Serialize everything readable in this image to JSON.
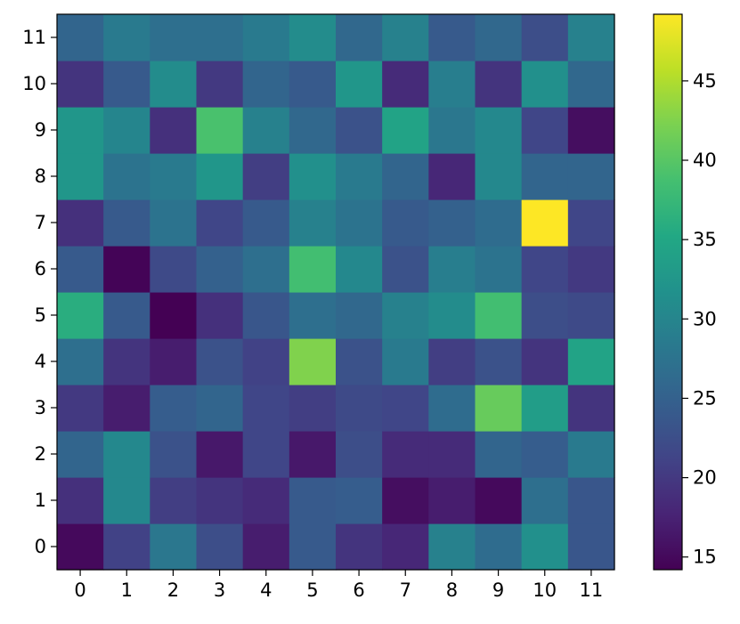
{
  "chart_data": {
    "type": "heatmap",
    "title": "",
    "xlabel": "",
    "ylabel": "",
    "x_tick_labels": [
      "0",
      "1",
      "2",
      "3",
      "4",
      "5",
      "6",
      "7",
      "8",
      "9",
      "10",
      "11"
    ],
    "y_tick_labels": [
      "0",
      "1",
      "2",
      "3",
      "4",
      "5",
      "6",
      "7",
      "8",
      "9",
      "10",
      "11"
    ],
    "y_origin": "bottom",
    "colormap": "viridis",
    "colorbar": {
      "vmin": 14.2,
      "vmax": 49.2,
      "ticks": [
        15,
        20,
        25,
        30,
        35,
        40,
        45
      ],
      "tick_labels": [
        "15",
        "20",
        "25",
        "30",
        "35",
        "40",
        "45"
      ]
    },
    "values": [
      [
        15.0,
        21.0,
        28.0,
        22.5,
        17.0,
        24.0,
        19.5,
        18.0,
        29.5,
        26.5,
        31.5,
        23.5
      ],
      [
        19.0,
        30.5,
        20.5,
        19.5,
        18.5,
        24.0,
        24.5,
        15.5,
        17.0,
        15.0,
        27.0,
        23.5
      ],
      [
        25.5,
        30.5,
        23.0,
        16.5,
        21.5,
        16.5,
        22.5,
        18.5,
        18.5,
        25.5,
        24.5,
        28.5
      ],
      [
        20.0,
        17.0,
        24.5,
        25.5,
        21.5,
        20.5,
        22.0,
        21.5,
        26.5,
        41.0,
        33.5,
        19.5
      ],
      [
        27.0,
        19.5,
        17.0,
        23.0,
        21.0,
        42.5,
        23.0,
        28.5,
        20.5,
        23.0,
        19.5,
        34.5
      ],
      [
        36.0,
        24.0,
        14.2,
        19.0,
        23.5,
        27.0,
        26.0,
        29.5,
        31.0,
        38.5,
        22.5,
        22.0
      ],
      [
        24.0,
        14.5,
        22.0,
        25.0,
        27.0,
        38.5,
        30.5,
        23.0,
        29.0,
        27.5,
        21.5,
        20.0
      ],
      [
        19.0,
        24.0,
        27.5,
        21.5,
        24.0,
        29.5,
        27.5,
        24.0,
        25.0,
        26.5,
        49.2,
        21.5
      ],
      [
        32.5,
        27.5,
        28.5,
        32.5,
        20.5,
        31.5,
        28.5,
        25.5,
        18.0,
        30.5,
        25.5,
        25.5
      ],
      [
        32.5,
        30.0,
        19.0,
        39.0,
        29.5,
        26.0,
        23.0,
        34.5,
        28.0,
        30.5,
        21.5,
        15.5
      ],
      [
        19.5,
        24.0,
        31.0,
        20.0,
        25.5,
        24.0,
        32.5,
        18.5,
        29.0,
        19.5,
        31.5,
        26.0
      ],
      [
        25.5,
        28.5,
        27.0,
        27.0,
        28.5,
        31.0,
        26.0,
        29.5,
        24.0,
        26.0,
        22.5,
        29.5
      ]
    ]
  }
}
